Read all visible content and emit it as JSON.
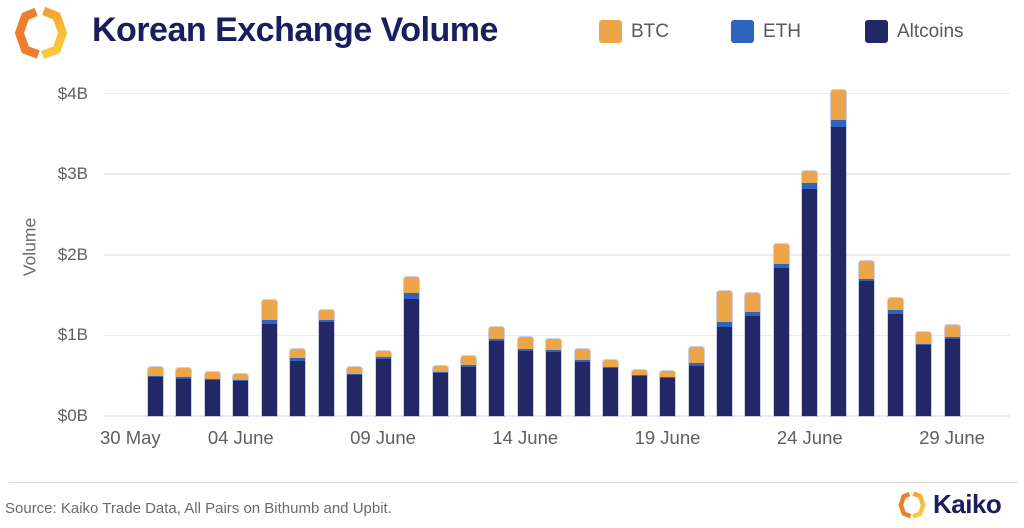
{
  "header": {
    "title": "Korean Exchange Volume"
  },
  "legend": [
    {
      "label": "BTC",
      "color": "#EDA54A"
    },
    {
      "label": "ETH",
      "color": "#2E63C0"
    },
    {
      "label": "Altcoins",
      "color": "#222766"
    }
  ],
  "colors": {
    "btc": "#EDA54A",
    "eth": "#2E63C0",
    "altcoins": "#222766",
    "title_navy": "#1B1E5E",
    "axis_text": "#5F5F5F",
    "gridline": "#EDEDED",
    "bar_outline": "#A3AACF",
    "logo_orange_dark": "#ED7D2F",
    "logo_orange_light": "#F5A02F",
    "logo_yellow": "#FBC93C"
  },
  "footer": {
    "source": "Source: Kaiko Trade Data, All Pairs on Bithumb and Upbit.",
    "brand": "Kaiko"
  },
  "chart_data": {
    "type": "bar",
    "stacked": true,
    "title": "Korean Exchange Volume",
    "xlabel": "",
    "ylabel": "Volume",
    "unit": "USD billions",
    "ylim": [
      0,
      4.3
    ],
    "grid": true,
    "legend_position": "top-right",
    "y_ticks": [
      {
        "value": 0,
        "label": "$0B"
      },
      {
        "value": 1,
        "label": "$1B"
      },
      {
        "value": 2,
        "label": "$2B"
      },
      {
        "value": 3,
        "label": "$3B"
      },
      {
        "value": 4,
        "label": "$4B"
      }
    ],
    "x_ticks": [
      {
        "label": "30 May",
        "bar_index": -2
      },
      {
        "label": "04 June",
        "bar_index": 3
      },
      {
        "label": "09 June",
        "bar_index": 8
      },
      {
        "label": "14 June",
        "bar_index": 13
      },
      {
        "label": "19 June",
        "bar_index": 18
      },
      {
        "label": "24 June",
        "bar_index": 23
      },
      {
        "label": "29 June",
        "bar_index": 28
      }
    ],
    "categories": [
      "01 June",
      "02 June",
      "03 June",
      "04 June",
      "05 June",
      "06 June",
      "07 June",
      "08 June",
      "09 June",
      "10 June",
      "11 June",
      "12 June",
      "13 June",
      "14 June",
      "15 June",
      "16 June",
      "17 June",
      "18 June",
      "19 June",
      "20 June",
      "21 June",
      "22 June",
      "23 June",
      "24 June",
      "25 June",
      "26 June",
      "27 June",
      "28 June",
      "29 June"
    ],
    "series": [
      {
        "name": "Altcoins",
        "color": "#222766",
        "values": [
          0.48,
          0.46,
          0.45,
          0.44,
          1.14,
          0.68,
          1.16,
          0.51,
          0.71,
          1.45,
          0.53,
          0.61,
          0.93,
          0.8,
          0.79,
          0.67,
          0.6,
          0.5,
          0.47,
          0.62,
          1.1,
          1.24,
          1.83,
          2.81,
          3.58,
          1.67,
          1.26,
          0.88,
          0.95
        ]
      },
      {
        "name": "ETH",
        "color": "#2E63C0",
        "values": [
          0.02,
          0.02,
          0.01,
          0.01,
          0.05,
          0.04,
          0.03,
          0.01,
          0.02,
          0.08,
          0.01,
          0.02,
          0.03,
          0.03,
          0.03,
          0.03,
          0.01,
          0.01,
          0.01,
          0.04,
          0.06,
          0.05,
          0.05,
          0.08,
          0.09,
          0.03,
          0.05,
          0.01,
          0.03
        ]
      },
      {
        "name": "BTC",
        "color": "#EDA54A",
        "values": [
          0.11,
          0.11,
          0.08,
          0.07,
          0.25,
          0.11,
          0.13,
          0.09,
          0.08,
          0.2,
          0.08,
          0.11,
          0.14,
          0.15,
          0.13,
          0.13,
          0.08,
          0.06,
          0.08,
          0.2,
          0.39,
          0.23,
          0.25,
          0.15,
          0.37,
          0.22,
          0.15,
          0.15,
          0.15
        ]
      }
    ],
    "totals": [
      0.61,
      0.59,
      0.54,
      0.52,
      1.44,
      0.83,
      1.32,
      0.61,
      0.81,
      1.73,
      0.62,
      0.74,
      1.1,
      0.98,
      0.95,
      0.83,
      0.69,
      0.57,
      0.56,
      0.86,
      1.55,
      1.52,
      2.13,
      3.04,
      4.04,
      1.92,
      1.46,
      1.04,
      1.13
    ]
  }
}
